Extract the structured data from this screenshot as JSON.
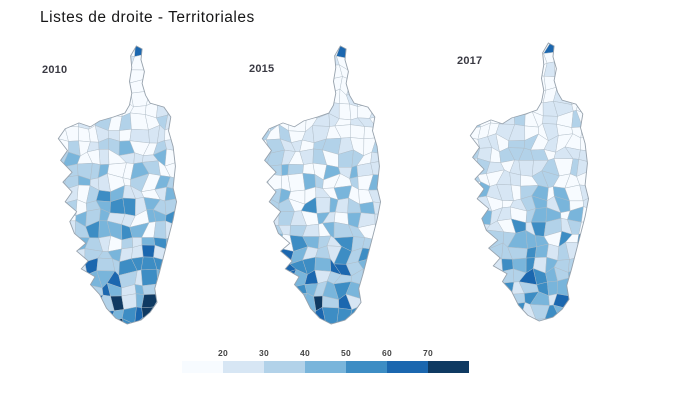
{
  "header": {
    "title": "Listes de droite - Territoriales"
  },
  "maps": [
    {
      "year": "2010"
    },
    {
      "year": "2015"
    },
    {
      "year": "2017"
    }
  ],
  "legend": {
    "ticks": [
      "20",
      "30",
      "40",
      "50",
      "60",
      "70"
    ],
    "colors": [
      "#f7fbff",
      "#d7e6f4",
      "#b2d2e9",
      "#79b5db",
      "#3d8dc4",
      "#1b67af",
      "#0f3a62"
    ]
  },
  "chart_data": {
    "type": "heatmap",
    "subtype": "choropleth small multiples (communes of Corsica)",
    "title": "Listes de droite - Territoriales",
    "facets": [
      "2010",
      "2015",
      "2017"
    ],
    "value_format": "vote share (%)",
    "color_scale": {
      "kind": "threshold",
      "thresholds": [
        20,
        30,
        40,
        50,
        60,
        70
      ],
      "colors": [
        "#f7fbff",
        "#d7e6f4",
        "#b2d2e9",
        "#79b5db",
        "#3d8dc4",
        "#1b67af",
        "#0f3a62"
      ],
      "legend_position": "bottom-center"
    },
    "approx_bin_share_by_year": {
      "2010": [
        0.3,
        0.22,
        0.17,
        0.14,
        0.09,
        0.05,
        0.03
      ],
      "2015": [
        0.32,
        0.22,
        0.17,
        0.13,
        0.09,
        0.04,
        0.03
      ],
      "2017": [
        0.36,
        0.24,
        0.17,
        0.12,
        0.07,
        0.03,
        0.01
      ]
    },
    "pattern_note": "Darker blues (higher right-wing vote share) cluster in the southern half of the island; the north-centre interior is mostly in the lightest bin. Pattern lightens slightly from 2010 to 2017."
  }
}
